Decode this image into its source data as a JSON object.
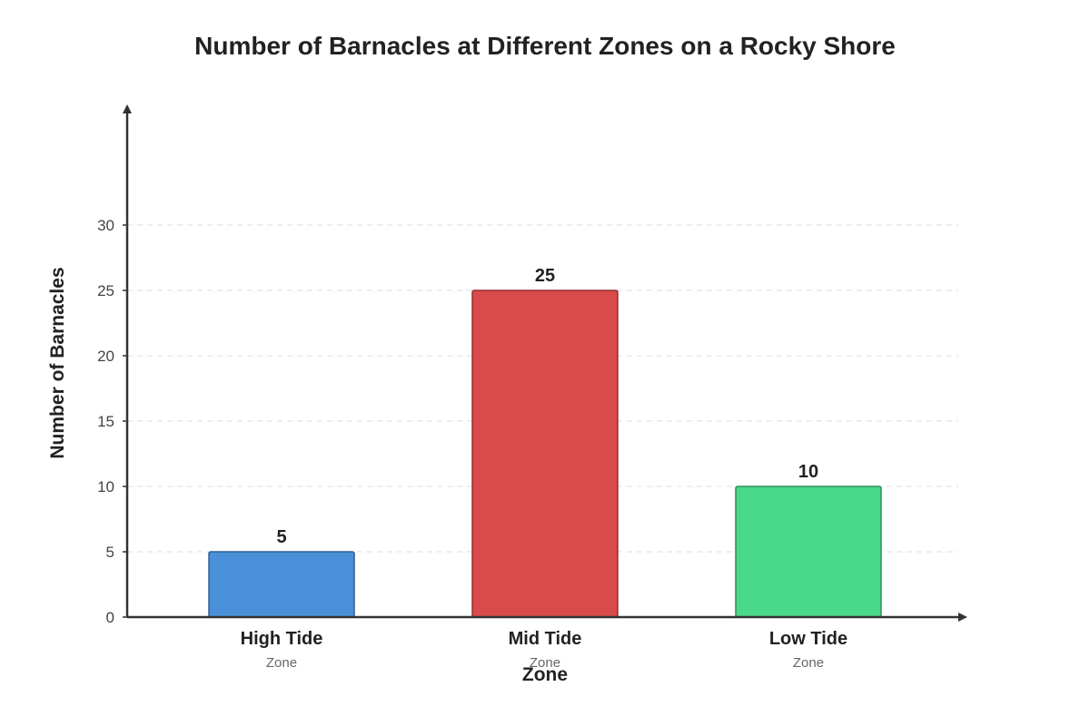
{
  "chart_data": {
    "type": "bar",
    "title": "Number of Barnacles at Different Zones on a Rocky Shore",
    "xlabel": "Zone",
    "ylabel": "Number of Barnacles",
    "categories": [
      "High Tide",
      "Mid Tide",
      "Low Tide"
    ],
    "category_sublabels": [
      "Zone",
      "Zone",
      "Zone"
    ],
    "values": [
      5,
      25,
      10
    ],
    "data_labels": [
      "5",
      "25",
      "10"
    ],
    "colors": [
      "#4a90d9",
      "#d94a4a",
      "#4ad98a"
    ],
    "border_colors": [
      "#2f5f94",
      "#943030",
      "#2f8f5a"
    ],
    "yticks": [
      0,
      5,
      10,
      15,
      20,
      25,
      30
    ],
    "ylim": [
      0,
      37
    ],
    "grid": true
  }
}
